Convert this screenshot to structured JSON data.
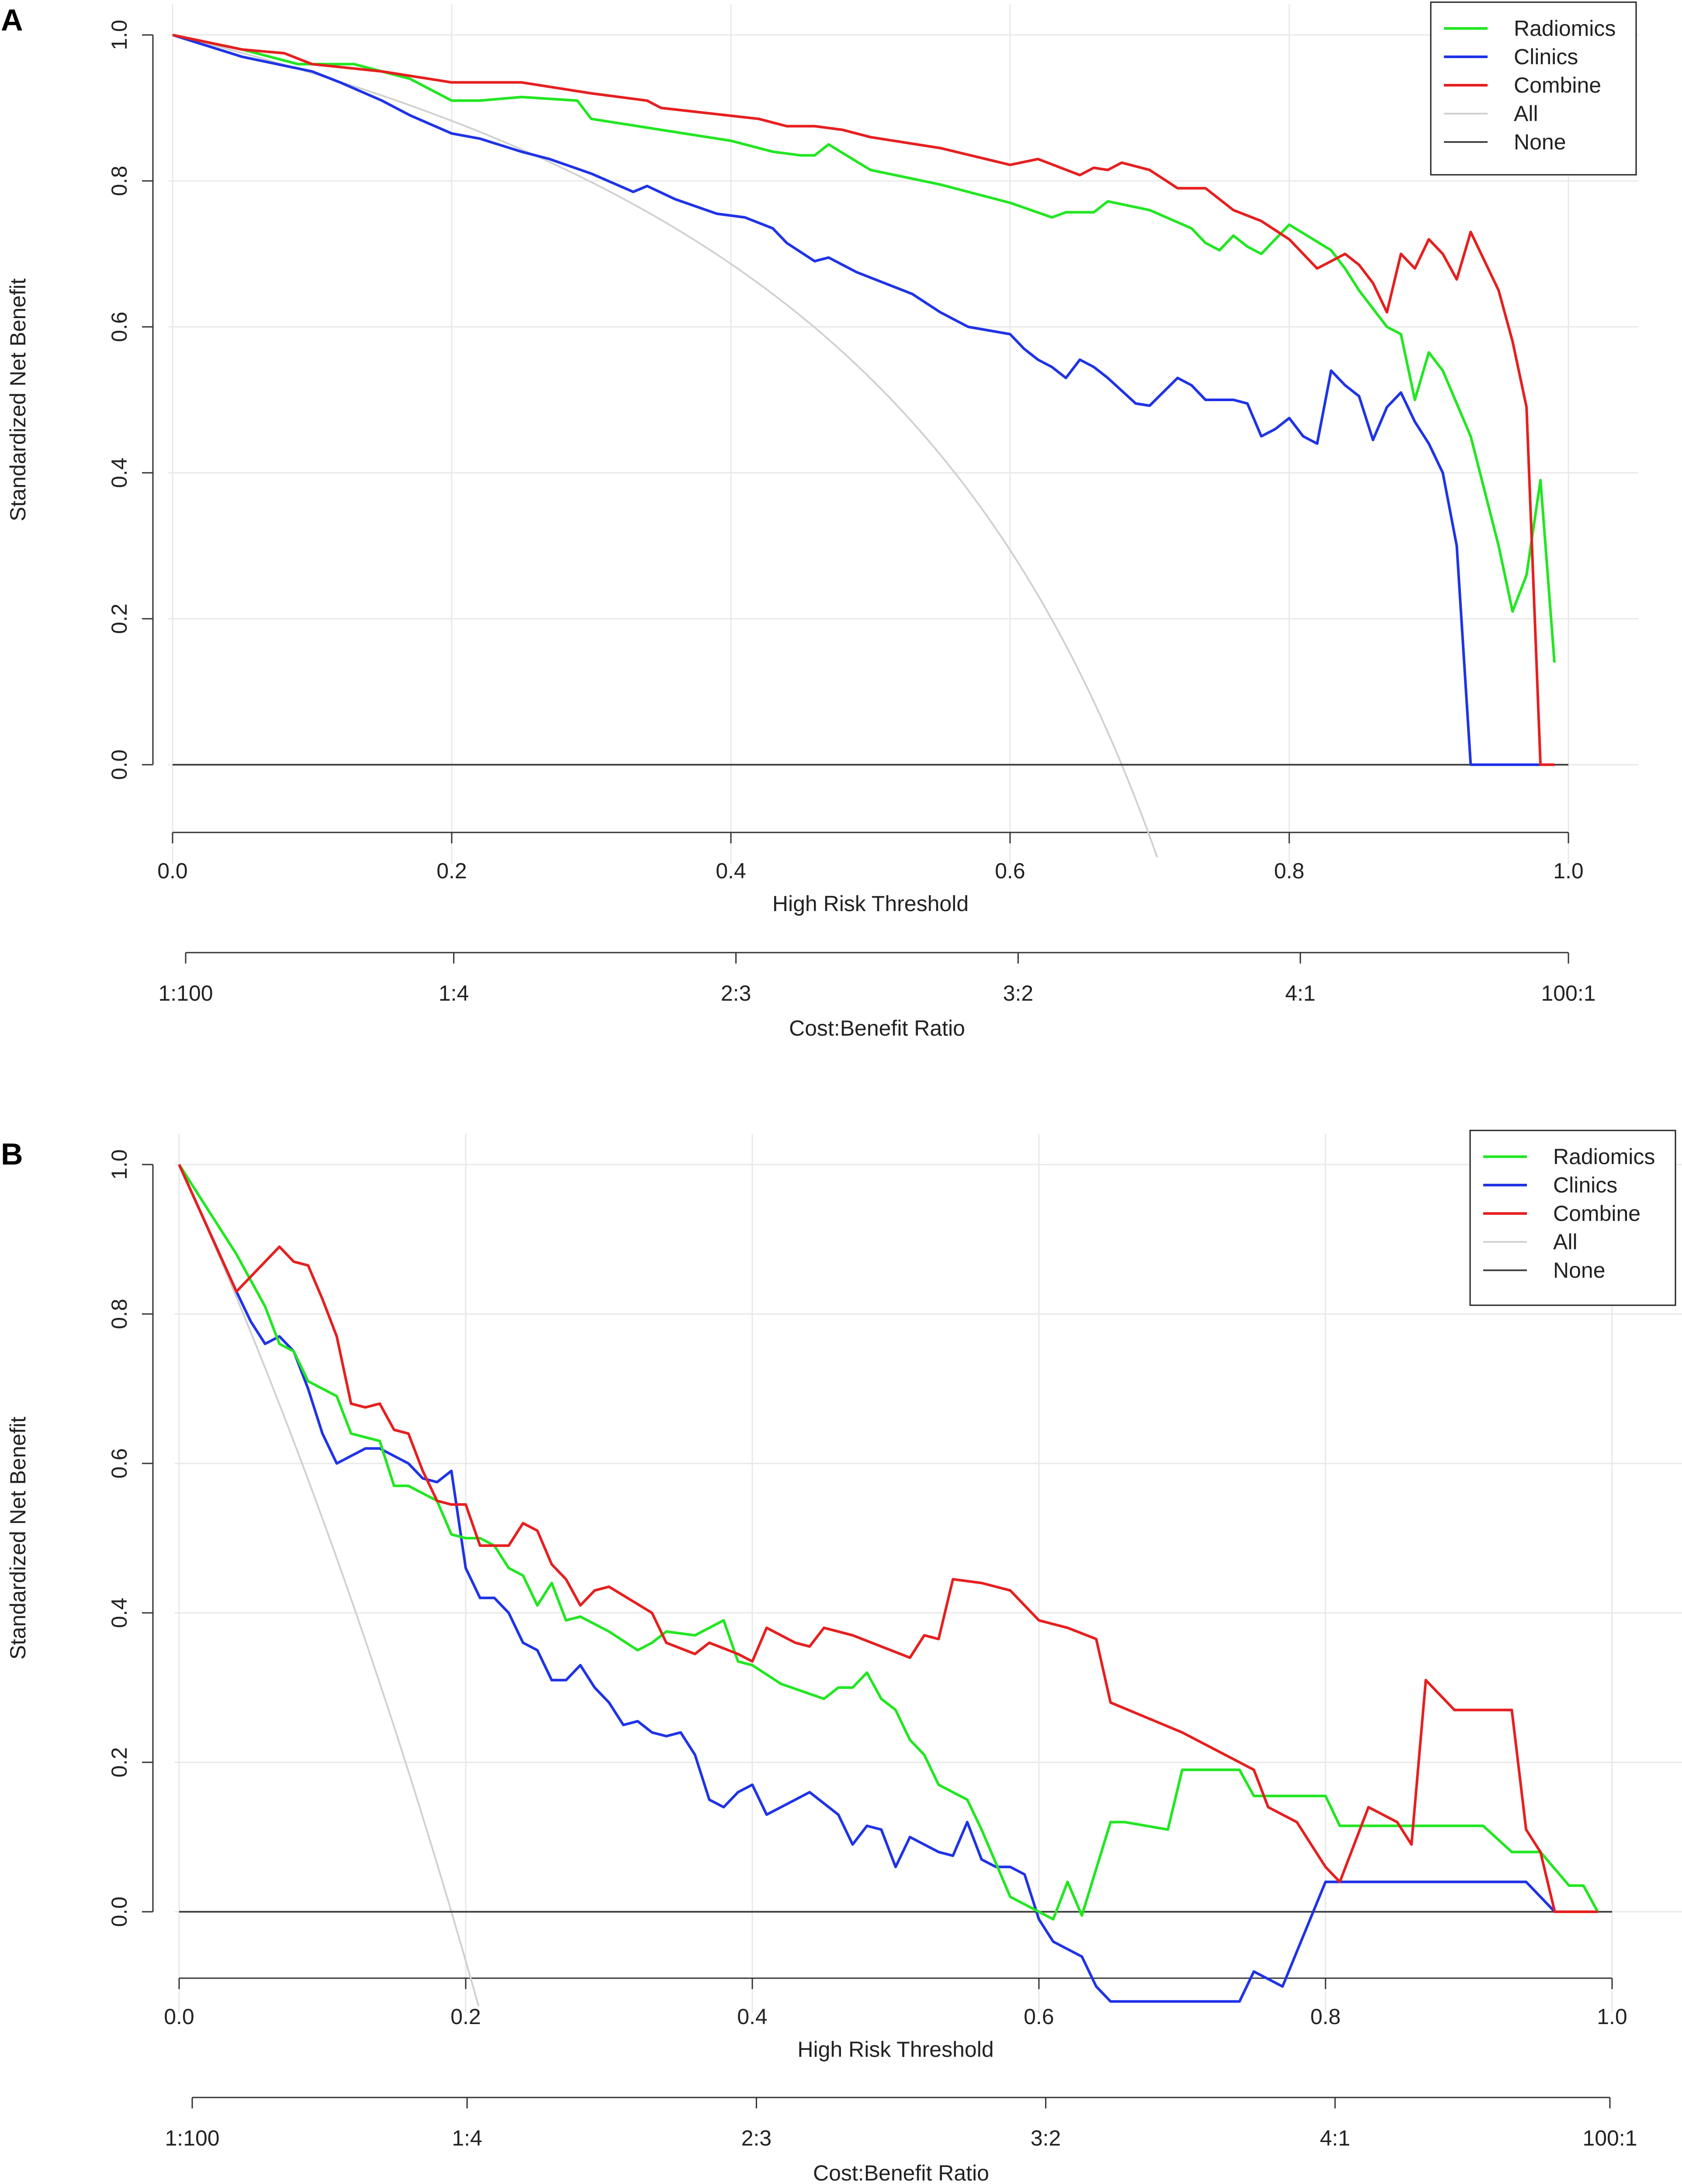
{
  "chart_data": [
    {
      "panel": "A",
      "type": "line",
      "ylabel": "Standardized Net Benefit",
      "xlabel": "High Risk Threshold",
      "x2label": "Cost:Benefit Ratio",
      "xlim": [
        0,
        1
      ],
      "ylim": [
        -0.1,
        1.0
      ],
      "xticks": [
        0.0,
        0.2,
        0.4,
        0.6,
        0.8,
        1.0
      ],
      "xtick_labels": [
        "0.0",
        "0.2",
        "0.4",
        "0.6",
        "0.8",
        "1.0"
      ],
      "yticks": [
        0.0,
        0.2,
        0.4,
        0.6,
        0.8,
        1.0
      ],
      "ytick_labels": [
        "0.0",
        "0.2",
        "0.4",
        "0.6",
        "0.8",
        "1.0"
      ],
      "ratio_ticks": [
        0.01,
        0.2,
        0.4,
        0.6,
        0.8,
        0.99
      ],
      "ratio_labels": [
        "1:100",
        "1:4",
        "2:3",
        "3:2",
        "4:1",
        "100:1"
      ],
      "grid": true,
      "legend": "top-right",
      "all_prevalence": 0.68,
      "series": [
        {
          "name": "Radiomics",
          "color": "#22e622",
          "width": 6,
          "x": [
            0.0,
            0.05,
            0.09,
            0.13,
            0.17,
            0.2,
            0.22,
            0.25,
            0.29,
            0.3,
            0.35,
            0.4,
            0.43,
            0.45,
            0.46,
            0.47,
            0.5,
            0.55,
            0.6,
            0.63,
            0.64,
            0.66,
            0.67,
            0.7,
            0.73,
            0.74,
            0.75,
            0.76,
            0.77,
            0.78,
            0.79,
            0.8,
            0.83,
            0.84,
            0.85,
            0.87,
            0.88,
            0.89,
            0.9,
            0.91,
            0.93,
            0.95,
            0.96,
            0.97,
            0.98,
            0.99
          ],
          "y": [
            1.0,
            0.98,
            0.96,
            0.96,
            0.94,
            0.91,
            0.91,
            0.915,
            0.91,
            0.885,
            0.87,
            0.855,
            0.84,
            0.835,
            0.835,
            0.85,
            0.815,
            0.795,
            0.77,
            0.75,
            0.757,
            0.757,
            0.772,
            0.76,
            0.735,
            0.715,
            0.705,
            0.725,
            0.71,
            0.7,
            0.72,
            0.74,
            0.705,
            0.68,
            0.65,
            0.6,
            0.59,
            0.5,
            0.565,
            0.54,
            0.45,
            0.3,
            0.21,
            0.26,
            0.39,
            0.14
          ]
        },
        {
          "name": "Clinics",
          "color": "#1f33e6",
          "width": 6,
          "x": [
            0.0,
            0.05,
            0.1,
            0.12,
            0.15,
            0.17,
            0.2,
            0.22,
            0.25,
            0.27,
            0.3,
            0.33,
            0.34,
            0.36,
            0.39,
            0.41,
            0.43,
            0.44,
            0.46,
            0.47,
            0.49,
            0.51,
            0.53,
            0.55,
            0.57,
            0.6,
            0.61,
            0.62,
            0.63,
            0.64,
            0.65,
            0.66,
            0.67,
            0.69,
            0.7,
            0.72,
            0.73,
            0.74,
            0.75,
            0.76,
            0.77,
            0.78,
            0.79,
            0.8,
            0.81,
            0.82,
            0.83,
            0.84,
            0.85,
            0.86,
            0.87,
            0.88,
            0.89,
            0.9,
            0.91,
            0.92,
            0.93,
            0.95,
            0.96,
            0.97,
            0.98
          ],
          "y": [
            1.0,
            0.97,
            0.95,
            0.935,
            0.91,
            0.89,
            0.865,
            0.858,
            0.84,
            0.83,
            0.81,
            0.785,
            0.793,
            0.775,
            0.755,
            0.75,
            0.735,
            0.715,
            0.69,
            0.695,
            0.675,
            0.66,
            0.645,
            0.62,
            0.6,
            0.59,
            0.57,
            0.555,
            0.545,
            0.53,
            0.555,
            0.545,
            0.53,
            0.495,
            0.492,
            0.53,
            0.52,
            0.5,
            0.5,
            0.5,
            0.495,
            0.45,
            0.46,
            0.475,
            0.45,
            0.44,
            0.54,
            0.52,
            0.505,
            0.445,
            0.49,
            0.51,
            0.47,
            0.44,
            0.4,
            0.3,
            0.0,
            0.0,
            0.0,
            0.0,
            0.0
          ]
        },
        {
          "name": "Combine",
          "color": "#e61f1f",
          "width": 6,
          "x": [
            0.0,
            0.05,
            0.08,
            0.1,
            0.15,
            0.2,
            0.25,
            0.3,
            0.34,
            0.35,
            0.42,
            0.44,
            0.46,
            0.48,
            0.5,
            0.55,
            0.6,
            0.62,
            0.65,
            0.66,
            0.67,
            0.68,
            0.7,
            0.72,
            0.74,
            0.76,
            0.78,
            0.8,
            0.82,
            0.84,
            0.85,
            0.86,
            0.87,
            0.88,
            0.89,
            0.9,
            0.91,
            0.92,
            0.93,
            0.95,
            0.96,
            0.97,
            0.98,
            0.99
          ],
          "y": [
            1.0,
            0.98,
            0.975,
            0.96,
            0.95,
            0.935,
            0.935,
            0.92,
            0.91,
            0.9,
            0.885,
            0.875,
            0.875,
            0.87,
            0.86,
            0.845,
            0.822,
            0.83,
            0.808,
            0.818,
            0.815,
            0.825,
            0.815,
            0.79,
            0.79,
            0.76,
            0.745,
            0.72,
            0.68,
            0.7,
            0.685,
            0.66,
            0.62,
            0.7,
            0.68,
            0.72,
            0.7,
            0.665,
            0.73,
            0.65,
            0.58,
            0.49,
            0.0,
            0.0
          ]
        },
        {
          "name": "All",
          "color": "#d0d0d0",
          "width": 4,
          "kind": "all"
        },
        {
          "name": "None",
          "color": "#444444",
          "width": 4,
          "kind": "none"
        }
      ]
    },
    {
      "panel": "B",
      "type": "line",
      "ylabel": "Standardized Net Benefit",
      "xlabel": "High Risk Threshold",
      "x2label": "Cost:Benefit Ratio",
      "xlim": [
        0,
        1
      ],
      "ylim": [
        -0.1,
        1.0
      ],
      "xticks": [
        0.0,
        0.2,
        0.4,
        0.6,
        0.8,
        1.0
      ],
      "xtick_labels": [
        "0.0",
        "0.2",
        "0.4",
        "0.6",
        "0.8",
        "1.0"
      ],
      "yticks": [
        0.0,
        0.2,
        0.4,
        0.6,
        0.8,
        1.0
      ],
      "ytick_labels": [
        "0.0",
        "0.2",
        "0.4",
        "0.6",
        "0.8",
        "1.0"
      ],
      "ratio_ticks": [
        0.01,
        0.2,
        0.4,
        0.6,
        0.8,
        0.99
      ],
      "ratio_labels": [
        "1:100",
        "1:4",
        "2:3",
        "3:2",
        "4:1",
        "100:1"
      ],
      "grid": true,
      "legend": "top-right",
      "all_prevalence": 0.19,
      "series": [
        {
          "name": "Radiomics",
          "color": "#22e622",
          "width": 6,
          "x": [
            0.0,
            0.04,
            0.06,
            0.07,
            0.08,
            0.09,
            0.1,
            0.11,
            0.12,
            0.14,
            0.15,
            0.16,
            0.17,
            0.18,
            0.19,
            0.2,
            0.21,
            0.22,
            0.23,
            0.24,
            0.25,
            0.26,
            0.27,
            0.28,
            0.29,
            0.3,
            0.32,
            0.33,
            0.34,
            0.36,
            0.37,
            0.38,
            0.39,
            0.4,
            0.42,
            0.45,
            0.46,
            0.47,
            0.48,
            0.49,
            0.5,
            0.51,
            0.52,
            0.53,
            0.55,
            0.56,
            0.58,
            0.6,
            0.61,
            0.62,
            0.63,
            0.65,
            0.66,
            0.69,
            0.7,
            0.72,
            0.74,
            0.75,
            0.77,
            0.78,
            0.8,
            0.81,
            0.82,
            0.84,
            0.87,
            0.89,
            0.91,
            0.93,
            0.94,
            0.95,
            0.97,
            0.98,
            0.99
          ],
          "y": [
            1.0,
            0.88,
            0.81,
            0.76,
            0.75,
            0.71,
            0.7,
            0.69,
            0.64,
            0.63,
            0.57,
            0.57,
            0.56,
            0.55,
            0.505,
            0.5,
            0.5,
            0.49,
            0.46,
            0.45,
            0.41,
            0.44,
            0.39,
            0.395,
            0.385,
            0.375,
            0.35,
            0.36,
            0.375,
            0.37,
            0.38,
            0.39,
            0.335,
            0.33,
            0.305,
            0.285,
            0.3,
            0.3,
            0.32,
            0.285,
            0.27,
            0.23,
            0.21,
            0.17,
            0.15,
            0.11,
            0.02,
            0.0,
            -0.01,
            0.04,
            -0.005,
            0.12,
            0.12,
            0.11,
            0.19,
            0.19,
            0.19,
            0.155,
            0.155,
            0.155,
            0.155,
            0.115,
            0.115,
            0.115,
            0.115,
            0.115,
            0.115,
            0.08,
            0.08,
            0.08,
            0.035,
            0.035,
            0.0
          ]
        },
        {
          "name": "Clinics",
          "color": "#1f33e6",
          "width": 6,
          "x": [
            0.0,
            0.04,
            0.05,
            0.06,
            0.07,
            0.08,
            0.09,
            0.1,
            0.11,
            0.12,
            0.13,
            0.14,
            0.15,
            0.16,
            0.17,
            0.18,
            0.19,
            0.2,
            0.21,
            0.22,
            0.23,
            0.24,
            0.25,
            0.26,
            0.27,
            0.28,
            0.29,
            0.3,
            0.31,
            0.32,
            0.33,
            0.34,
            0.35,
            0.36,
            0.37,
            0.38,
            0.39,
            0.4,
            0.41,
            0.42,
            0.43,
            0.44,
            0.45,
            0.46,
            0.47,
            0.48,
            0.49,
            0.5,
            0.51,
            0.52,
            0.53,
            0.54,
            0.55,
            0.56,
            0.57,
            0.58,
            0.59,
            0.6,
            0.61,
            0.62,
            0.63,
            0.64,
            0.65,
            0.74,
            0.75,
            0.76,
            0.77,
            0.8,
            0.86,
            0.9,
            0.94,
            0.96,
            0.99
          ],
          "y": [
            1.0,
            0.83,
            0.79,
            0.76,
            0.77,
            0.75,
            0.7,
            0.64,
            0.6,
            0.61,
            0.62,
            0.62,
            0.61,
            0.6,
            0.58,
            0.575,
            0.59,
            0.46,
            0.42,
            0.42,
            0.4,
            0.36,
            0.35,
            0.31,
            0.31,
            0.33,
            0.3,
            0.28,
            0.25,
            0.255,
            0.24,
            0.235,
            0.24,
            0.21,
            0.15,
            0.14,
            0.16,
            0.17,
            0.13,
            0.14,
            0.15,
            0.16,
            0.145,
            0.13,
            0.09,
            0.115,
            0.11,
            0.06,
            0.1,
            0.09,
            0.08,
            0.075,
            0.12,
            0.07,
            0.06,
            0.06,
            0.05,
            -0.01,
            -0.04,
            -0.05,
            -0.06,
            -0.1,
            -0.12,
            -0.12,
            -0.08,
            -0.09,
            -0.1,
            0.04,
            0.04,
            0.04,
            0.04,
            0.0,
            0.0
          ]
        },
        {
          "name": "Combine",
          "color": "#e61f1f",
          "width": 6,
          "x": [
            0.0,
            0.04,
            0.06,
            0.07,
            0.08,
            0.09,
            0.1,
            0.11,
            0.12,
            0.13,
            0.14,
            0.15,
            0.16,
            0.17,
            0.18,
            0.19,
            0.2,
            0.21,
            0.22,
            0.23,
            0.24,
            0.25,
            0.26,
            0.27,
            0.28,
            0.29,
            0.3,
            0.33,
            0.34,
            0.36,
            0.37,
            0.39,
            0.4,
            0.41,
            0.42,
            0.43,
            0.44,
            0.45,
            0.47,
            0.49,
            0.51,
            0.52,
            0.53,
            0.54,
            0.56,
            0.58,
            0.6,
            0.62,
            0.64,
            0.65,
            0.7,
            0.74,
            0.75,
            0.76,
            0.78,
            0.8,
            0.81,
            0.83,
            0.85,
            0.86,
            0.87,
            0.89,
            0.91,
            0.93,
            0.94,
            0.95,
            0.96,
            0.98,
            0.99
          ],
          "y": [
            1.0,
            0.83,
            0.87,
            0.89,
            0.87,
            0.865,
            0.82,
            0.77,
            0.68,
            0.675,
            0.68,
            0.645,
            0.64,
            0.59,
            0.55,
            0.545,
            0.545,
            0.49,
            0.49,
            0.49,
            0.52,
            0.51,
            0.465,
            0.445,
            0.41,
            0.43,
            0.435,
            0.4,
            0.36,
            0.345,
            0.36,
            0.345,
            0.335,
            0.38,
            0.37,
            0.36,
            0.355,
            0.38,
            0.37,
            0.355,
            0.34,
            0.37,
            0.365,
            0.445,
            0.44,
            0.43,
            0.39,
            0.38,
            0.365,
            0.28,
            0.24,
            0.2,
            0.19,
            0.14,
            0.12,
            0.06,
            0.04,
            0.14,
            0.12,
            0.09,
            0.31,
            0.27,
            0.27,
            0.27,
            0.11,
            0.08,
            0.0,
            0.0,
            0.0
          ]
        },
        {
          "name": "All",
          "color": "#d0d0d0",
          "width": 4,
          "kind": "all"
        },
        {
          "name": "None",
          "color": "#444444",
          "width": 4,
          "kind": "none"
        }
      ]
    }
  ]
}
